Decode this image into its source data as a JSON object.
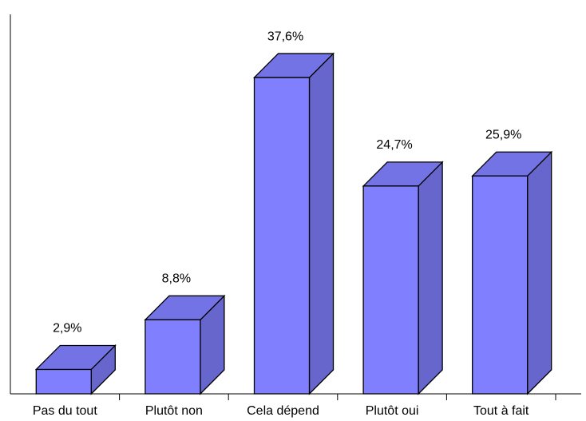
{
  "chart_data": {
    "type": "bar3d",
    "categories": [
      "Pas du tout",
      "Plutôt non",
      "Cela dépend",
      "Plutôt oui",
      "Tout à fait"
    ],
    "values": [
      2.9,
      8.8,
      37.6,
      24.7,
      25.9
    ],
    "value_labels": [
      "2,9%",
      "8,8%",
      "37,6%",
      "24,7%",
      "25,9%"
    ],
    "color": "#8080ff"
  }
}
